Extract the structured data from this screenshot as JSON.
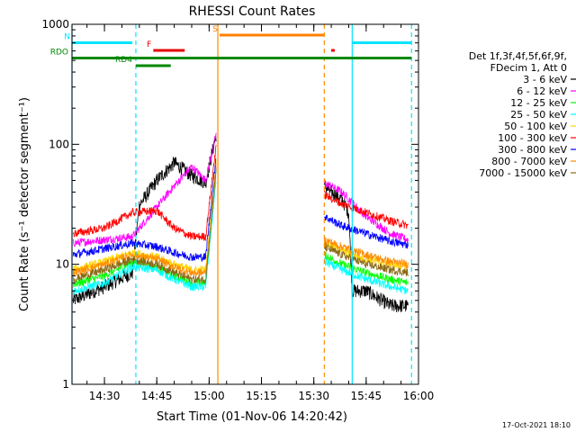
{
  "colors": {
    "background": "#ffffff",
    "axis": "#000000",
    "attenuator_line": "#00e5ff",
    "saa_line": "#ff8c00",
    "flag_cyan": "#00e5ff",
    "flag_red": "#e60000",
    "flag_orange": "#ff8000",
    "flag_green": "#008800"
  },
  "chart_data": {
    "type": "line",
    "title": "RHESSI Count Rates",
    "xlabel": "Start Time (01-Nov-06 14:20:42)",
    "ylabel": "Count Rate (s⁻¹ detector segment⁻¹)",
    "xlim": [
      "14:20:42",
      "16:00:00"
    ],
    "ylim": [
      1,
      1000
    ],
    "y_scale": "log",
    "x_ticks": [
      "14:30",
      "14:45",
      "15:00",
      "15:15",
      "15:30",
      "15:45",
      "16:00"
    ],
    "y_ticks": [
      {
        "value": 1,
        "label": "1"
      },
      {
        "value": 10,
        "label": "10"
      },
      {
        "value": 100,
        "label": "100"
      },
      {
        "value": 1000,
        "label": "1000"
      }
    ],
    "legend_header": [
      "Det 1f,3f,4f,5f,6f,9f,",
      "FDecim 1, Att 0"
    ],
    "legend_placement": "right",
    "series": [
      {
        "name": "3 - 6 keV",
        "color": "#000000",
        "t": [
          "14:21",
          "14:30",
          "14:38",
          "14:40",
          "14:45",
          "14:50",
          "14:55",
          "14:59",
          "15:02",
          "15:02",
          "15:33",
          "15:33",
          "15:35",
          "15:38",
          "15:40",
          "15:41",
          "15:45",
          "15:52",
          "15:57"
        ],
        "v": [
          5,
          6.5,
          8.5,
          31,
          50,
          70,
          55,
          48,
          120,
          null,
          null,
          45,
          40,
          35,
          27,
          6,
          6,
          4.5,
          4.5
        ]
      },
      {
        "name": "6 - 12 keV",
        "color": "#ff00ff",
        "t": [
          "14:21",
          "14:30",
          "14:38",
          "14:45",
          "14:50",
          "14:55",
          "14:59",
          "15:02",
          "15:02",
          "15:33",
          "15:33",
          "15:38",
          "15:45",
          "15:52",
          "15:57"
        ],
        "v": [
          15,
          16,
          17,
          30,
          45,
          65,
          50,
          120,
          null,
          null,
          48,
          40,
          25,
          18,
          16
        ]
      },
      {
        "name": "12 - 25 keV",
        "color": "#00ff00",
        "t": [
          "14:21",
          "14:30",
          "14:38",
          "14:45",
          "14:50",
          "14:55",
          "14:59",
          "15:02",
          "15:02",
          "15:33",
          "15:33",
          "15:38",
          "15:45",
          "15:52",
          "15:57"
        ],
        "v": [
          6.8,
          8,
          10.5,
          9.5,
          8,
          7,
          7,
          60,
          null,
          null,
          12,
          10,
          8.5,
          7.5,
          7
        ]
      },
      {
        "name": "25 - 50 keV",
        "color": "#00ffff",
        "t": [
          "14:21",
          "14:30",
          "14:38",
          "14:45",
          "14:50",
          "14:55",
          "14:59",
          "15:02",
          "15:02",
          "15:33",
          "15:33",
          "15:38",
          "15:45",
          "15:52",
          "15:57"
        ],
        "v": [
          6,
          7,
          9.5,
          9,
          7.5,
          6.5,
          6.5,
          50,
          null,
          null,
          10.5,
          9,
          7.5,
          6.5,
          6
        ]
      },
      {
        "name": "50 - 100 keV",
        "color": "#ffd700",
        "t": [
          "14:21",
          "14:30",
          "14:38",
          "14:45",
          "14:50",
          "14:55",
          "14:59",
          "15:02",
          "15:02",
          "15:33",
          "15:33",
          "15:38",
          "15:45",
          "15:52",
          "15:57"
        ],
        "v": [
          9,
          10.5,
          12.5,
          11.5,
          10,
          9,
          9,
          70,
          null,
          null,
          15,
          13,
          11,
          10,
          9.5
        ]
      },
      {
        "name": "100 - 300 keV",
        "color": "#ff0000",
        "t": [
          "14:21",
          "14:30",
          "14:38",
          "14:45",
          "14:50",
          "14:55",
          "14:59",
          "15:02",
          "15:02",
          "15:33",
          "15:33",
          "15:38",
          "15:45",
          "15:52",
          "15:57"
        ],
        "v": [
          18,
          20,
          27,
          28,
          20,
          17,
          17,
          100,
          null,
          null,
          38,
          32,
          27,
          23,
          21
        ]
      },
      {
        "name": "300 - 800 keV",
        "color": "#0000ff",
        "t": [
          "14:21",
          "14:30",
          "14:38",
          "14:45",
          "14:50",
          "14:55",
          "14:59",
          "15:02",
          "15:02",
          "15:33",
          "15:33",
          "15:38",
          "15:45",
          "15:52",
          "15:57"
        ],
        "v": [
          12,
          13.5,
          15,
          14,
          12.5,
          11.5,
          11.5,
          80,
          null,
          null,
          25,
          21,
          18,
          15.5,
          14.5
        ]
      },
      {
        "name": "800 - 7000 keV",
        "color": "#ff8c00",
        "t": [
          "14:21",
          "14:30",
          "14:38",
          "14:45",
          "14:50",
          "14:55",
          "14:59",
          "15:02",
          "15:02",
          "15:33",
          "15:33",
          "15:38",
          "15:45",
          "15:52",
          "15:57"
        ],
        "v": [
          8.5,
          10,
          12,
          11,
          9.5,
          8.5,
          8.5,
          65,
          null,
          null,
          16,
          14,
          12,
          10.5,
          10
        ]
      },
      {
        "name": "7000 - 15000 keV",
        "color": "#8b6914",
        "t": [
          "14:21",
          "14:30",
          "14:38",
          "14:45",
          "14:50",
          "14:55",
          "14:59",
          "15:02",
          "15:02",
          "15:33",
          "15:33",
          "15:38",
          "15:45",
          "15:52",
          "15:57"
        ],
        "v": [
          7.5,
          9,
          11,
          10,
          8.5,
          7.5,
          7.5,
          60,
          null,
          null,
          14,
          12,
          10,
          9,
          8.5
        ]
      }
    ],
    "attenuator_times": [
      {
        "t": "14:20:42",
        "style": "solid"
      },
      {
        "t": "14:39:00",
        "style": "dashed"
      },
      {
        "t": "15:41:00",
        "style": "solid"
      },
      {
        "t": "15:58:00",
        "style": "dashed"
      }
    ],
    "saa_times": [
      {
        "t": "15:02:30",
        "style": "solid"
      },
      {
        "t": "15:33:00",
        "style": "dashed"
      }
    ],
    "flags": [
      {
        "label": "N",
        "color": "#00e5ff",
        "level": 7,
        "segments": [
          [
            "14:20:42",
            "14:38:00"
          ],
          [
            "15:41:00",
            "15:58:00"
          ]
        ]
      },
      {
        "label": "S",
        "color": "#ff8000",
        "level": 8,
        "segments": [
          [
            "15:03:00",
            "15:33:00"
          ]
        ]
      },
      {
        "label": "F",
        "color": "#e60000",
        "level": 6,
        "segments": [
          [
            "14:44:00",
            "14:53:00"
          ],
          [
            "15:35:00",
            "15:36:00"
          ]
        ]
      },
      {
        "label": "RDO",
        "color": "#008800",
        "level": 5,
        "segments": [
          [
            "14:20:42",
            "15:58:00"
          ]
        ]
      },
      {
        "label": "RD4",
        "color": "#008800",
        "level": 4,
        "segments": [
          [
            "14:39:00",
            "14:49:00"
          ]
        ]
      }
    ]
  },
  "footer_timestamp": "17-Oct-2021 18:10"
}
